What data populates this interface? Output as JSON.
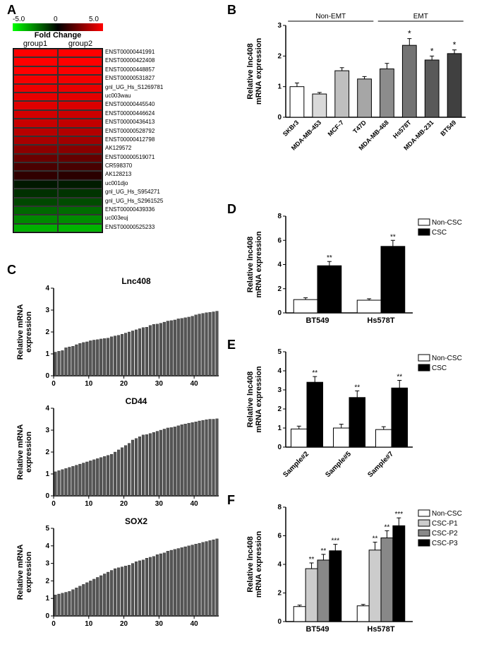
{
  "panelA": {
    "label": "A",
    "colorbar": {
      "min": "-5.0",
      "mid": "0",
      "max": "5.0",
      "title": "Fold Change"
    },
    "groups": [
      "group1",
      "group2"
    ],
    "genes": [
      "ENST00000441991",
      "ENST00000422408",
      "ENST00000448857",
      "ENST00000531827",
      "gnl_UG_Hs_S1269781",
      "uc003wau",
      "ENST00000445540",
      "ENST00000446624",
      "ENST00000436413",
      "ENST00000528792",
      "ENST00000412798",
      "AK129572",
      "ENST00000519071",
      "CR598370",
      "AK128213",
      "uc001djo",
      "gnl_UG_Hs_S954271",
      "gnl_UG_Hs_S2961525",
      "ENST00000439336",
      "uc003euj",
      "ENST00000525233"
    ],
    "colors_g1": [
      "#ff0000",
      "#ff0000",
      "#ff0000",
      "#f50000",
      "#ee0000",
      "#e80000",
      "#e00000",
      "#d20000",
      "#c80000",
      "#b80000",
      "#a80000",
      "#8c0000",
      "#6a0000",
      "#4a0000",
      "#300000",
      "#001800",
      "#003000",
      "#004800",
      "#006800",
      "#008800",
      "#00b000"
    ],
    "colors_g2": [
      "#ff0000",
      "#ff0000",
      "#fa0000",
      "#f20000",
      "#ea0000",
      "#e40000",
      "#da0000",
      "#cc0000",
      "#c20000",
      "#b20000",
      "#a00000",
      "#880000",
      "#640000",
      "#480000",
      "#2a0000",
      "#001c00",
      "#003400",
      "#004c00",
      "#006c00",
      "#008c00",
      "#00b400"
    ]
  },
  "panelB": {
    "label": "B",
    "ylabel": "Relative lnc408\nmRNA expression",
    "groups": {
      "nonemt": "Non-EMT",
      "emt": "EMT"
    },
    "categories": [
      "SKBr3",
      "MDA-MB-453",
      "MCF-7",
      "T47D",
      "MDA-MB-468",
      "Hs578T",
      "MDA-MB-231",
      "BT549"
    ],
    "values": [
      1.0,
      0.76,
      1.52,
      1.25,
      1.58,
      2.35,
      1.87,
      2.08
    ],
    "errors": [
      0.12,
      0.05,
      0.1,
      0.08,
      0.18,
      0.22,
      0.13,
      0.12
    ],
    "colors": [
      "#ffffff",
      "#d9d9d9",
      "#bfbfbf",
      "#a6a6a6",
      "#8c8c8c",
      "#737373",
      "#595959",
      "#404040"
    ],
    "sig": [
      "",
      "",
      "",
      "",
      "",
      "*",
      "*",
      "*"
    ],
    "ymax": 3,
    "ytick": 1
  },
  "panelC": {
    "label": "C",
    "charts": [
      {
        "title": "Lnc408",
        "ymax": 4,
        "ytick": 1,
        "n": 47,
        "values": [
          1.08,
          1.12,
          1.15,
          1.28,
          1.32,
          1.35,
          1.42,
          1.48,
          1.52,
          1.55,
          1.6,
          1.63,
          1.65,
          1.68,
          1.7,
          1.72,
          1.78,
          1.82,
          1.85,
          1.9,
          1.95,
          2.0,
          2.05,
          2.1,
          2.15,
          2.2,
          2.22,
          2.3,
          2.35,
          2.36,
          2.4,
          2.45,
          2.5,
          2.52,
          2.55,
          2.6,
          2.62,
          2.65,
          2.68,
          2.72,
          2.78,
          2.82,
          2.85,
          2.88,
          2.9,
          2.92,
          2.95
        ]
      },
      {
        "title": "CD44",
        "ymax": 4,
        "ytick": 1,
        "n": 47,
        "values": [
          1.1,
          1.15,
          1.2,
          1.25,
          1.3,
          1.35,
          1.4,
          1.45,
          1.5,
          1.55,
          1.6,
          1.65,
          1.7,
          1.75,
          1.8,
          1.85,
          1.9,
          2.0,
          2.1,
          2.2,
          2.3,
          2.4,
          2.55,
          2.62,
          2.7,
          2.78,
          2.8,
          2.85,
          2.9,
          2.95,
          3.0,
          3.05,
          3.1,
          3.12,
          3.15,
          3.2,
          3.25,
          3.28,
          3.32,
          3.35,
          3.38,
          3.42,
          3.45,
          3.48,
          3.5,
          3.5,
          3.52
        ]
      },
      {
        "title": "SOX2",
        "ymax": 5,
        "ytick": 1,
        "n": 47,
        "values": [
          1.2,
          1.25,
          1.3,
          1.35,
          1.4,
          1.5,
          1.6,
          1.7,
          1.8,
          1.9,
          2.0,
          2.1,
          2.2,
          2.3,
          2.4,
          2.5,
          2.6,
          2.7,
          2.75,
          2.8,
          2.85,
          2.9,
          3.0,
          3.1,
          3.15,
          3.2,
          3.3,
          3.35,
          3.4,
          3.5,
          3.55,
          3.6,
          3.7,
          3.75,
          3.8,
          3.85,
          3.9,
          3.95,
          4.0,
          4.05,
          4.1,
          4.15,
          4.2,
          4.25,
          4.3,
          4.35,
          4.4
        ]
      }
    ],
    "xlabel_ticks": [
      0,
      10,
      20,
      30,
      40
    ],
    "ylabel": "Relative mRNA\nexpression"
  },
  "panelD": {
    "label": "D",
    "ylabel": "Relative lnc408\nmRNA expression",
    "legend": [
      {
        "label": "Non-CSC",
        "color": "#ffffff"
      },
      {
        "label": "CSC",
        "color": "#000000"
      }
    ],
    "categories": [
      "BT549",
      "Hs578T"
    ],
    "series": [
      {
        "values": [
          1.1,
          1.05
        ],
        "errors": [
          0.15,
          0.12
        ],
        "color": "#ffffff"
      },
      {
        "values": [
          3.9,
          5.5
        ],
        "errors": [
          0.35,
          0.5
        ],
        "color": "#000000"
      }
    ],
    "sig": [
      [
        "",
        "**"
      ],
      [
        "",
        "**"
      ]
    ],
    "ymax": 8,
    "ytick": 2
  },
  "panelE": {
    "label": "E",
    "ylabel": "Relative lnc408\nmRNA expression",
    "legend": [
      {
        "label": "Non-CSC",
        "color": "#ffffff"
      },
      {
        "label": "CSC",
        "color": "#000000"
      }
    ],
    "categories": [
      "Sample#2",
      "Sample#5",
      "Sample#7"
    ],
    "series": [
      {
        "values": [
          0.95,
          1.0,
          0.92
        ],
        "errors": [
          0.15,
          0.2,
          0.15
        ],
        "color": "#ffffff"
      },
      {
        "values": [
          3.4,
          2.6,
          3.1
        ],
        "errors": [
          0.3,
          0.35,
          0.4
        ],
        "color": "#000000"
      }
    ],
    "sig": [
      [
        "",
        "**"
      ],
      [
        "",
        "**"
      ],
      [
        "",
        "**"
      ]
    ],
    "ymax": 5,
    "ytick": 1
  },
  "panelF": {
    "label": "F",
    "ylabel": "Relative lnc408\nmRNA expression",
    "legend": [
      {
        "label": "Non-CSC",
        "color": "#ffffff"
      },
      {
        "label": "CSC-P1",
        "color": "#cccccc"
      },
      {
        "label": "CSC-P2",
        "color": "#888888"
      },
      {
        "label": "CSC-P3",
        "color": "#000000"
      }
    ],
    "categories": [
      "BT549",
      "Hs578T"
    ],
    "series": [
      {
        "values": [
          1.05,
          1.1
        ],
        "errors": [
          0.1,
          0.1
        ],
        "color": "#ffffff"
      },
      {
        "values": [
          3.7,
          5.0
        ],
        "errors": [
          0.4,
          0.55
        ],
        "color": "#cccccc"
      },
      {
        "values": [
          4.3,
          5.85
        ],
        "errors": [
          0.4,
          0.5
        ],
        "color": "#888888"
      },
      {
        "values": [
          4.95,
          6.7
        ],
        "errors": [
          0.45,
          0.55
        ],
        "color": "#000000"
      }
    ],
    "sig": [
      [
        "",
        "**",
        "**",
        "***"
      ],
      [
        "",
        "**",
        "**",
        "***"
      ]
    ],
    "ymax": 8,
    "ytick": 2
  }
}
